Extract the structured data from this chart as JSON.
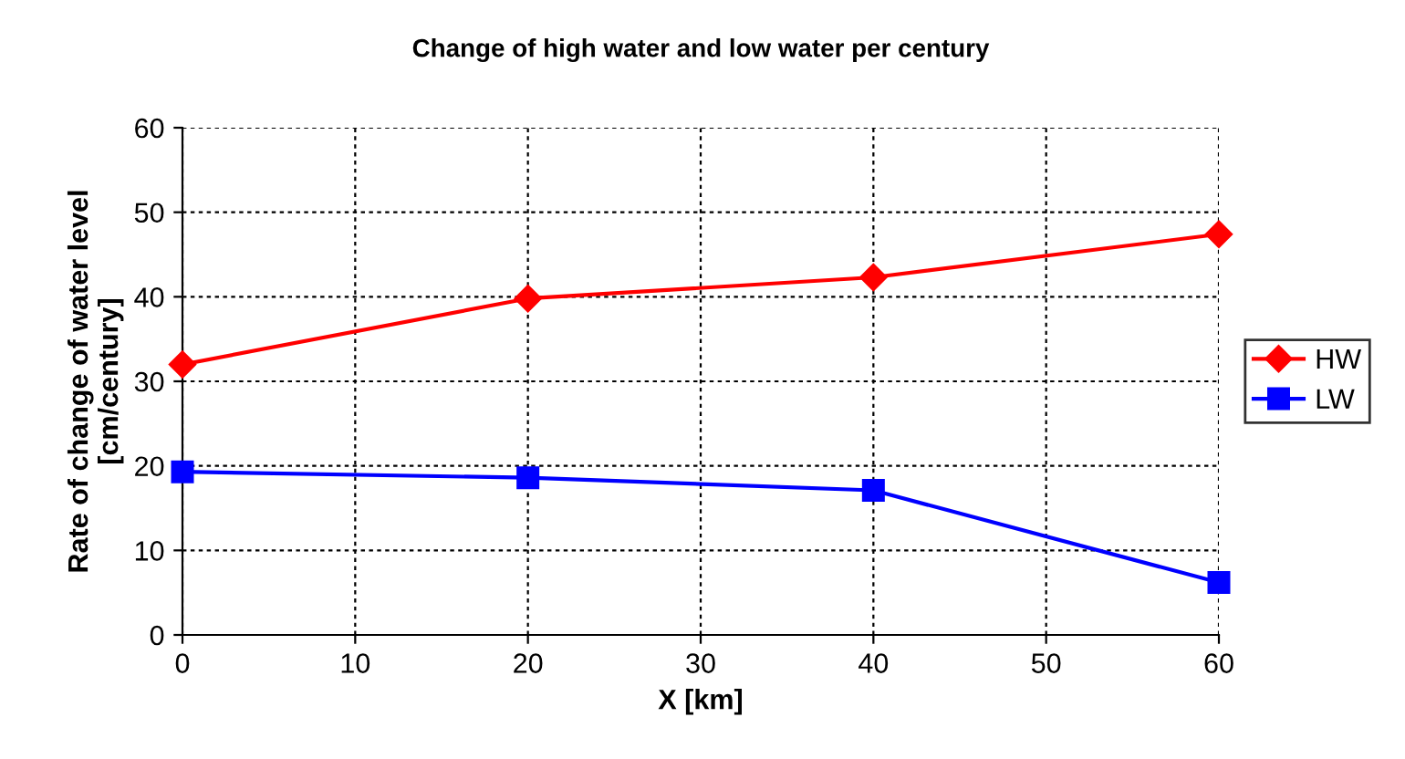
{
  "chart_data": {
    "type": "line",
    "title": "Change of high water and low water per century",
    "xlabel": "X [km]",
    "ylabel": "Rate of change of water level\n[cm/century]",
    "x": [
      0,
      20,
      40,
      60
    ],
    "series": [
      {
        "name": "HW",
        "color": "#ff0000",
        "marker": "diamond",
        "values": [
          32.0,
          39.8,
          42.3,
          47.4
        ]
      },
      {
        "name": "LW",
        "color": "#0000ff",
        "marker": "square",
        "values": [
          19.3,
          18.6,
          17.1,
          6.2
        ]
      }
    ],
    "xlim": [
      0,
      60
    ],
    "xticks": [
      0,
      10,
      20,
      30,
      40,
      50,
      60
    ],
    "ylim": [
      0,
      60
    ],
    "yticks": [
      0,
      10,
      20,
      30,
      40,
      50,
      60
    ],
    "grid": true,
    "legend": "right",
    "line_style": "solid"
  }
}
